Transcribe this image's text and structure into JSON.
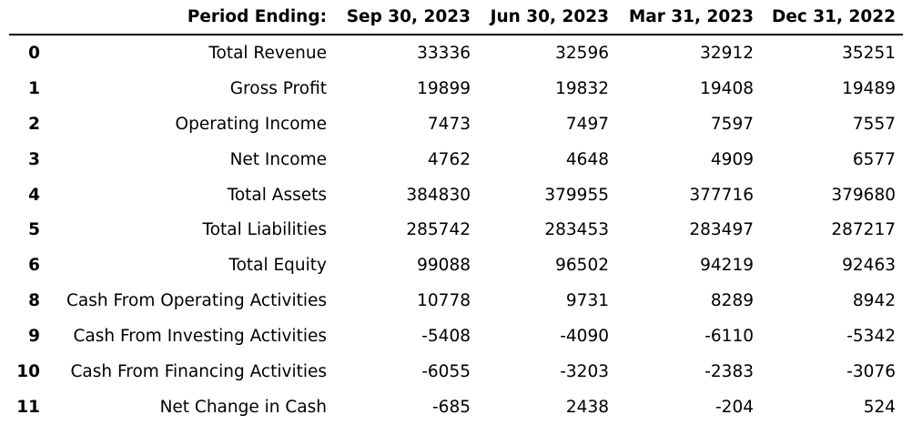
{
  "chart_data": {
    "type": "table",
    "header_label": "Period Ending:",
    "columns": [
      "Sep 30, 2023",
      "Jun 30, 2023",
      "Mar 31, 2023",
      "Dec 31, 2022"
    ],
    "rows": [
      {
        "index": "0",
        "label": "Total Revenue",
        "values": [
          "33336",
          "32596",
          "32912",
          "35251"
        ]
      },
      {
        "index": "1",
        "label": "Gross Profit",
        "values": [
          "19899",
          "19832",
          "19408",
          "19489"
        ]
      },
      {
        "index": "2",
        "label": "Operating Income",
        "values": [
          "7473",
          "7497",
          "7597",
          "7557"
        ]
      },
      {
        "index": "3",
        "label": "Net Income",
        "values": [
          "4762",
          "4648",
          "4909",
          "6577"
        ]
      },
      {
        "index": "4",
        "label": "Total Assets",
        "values": [
          "384830",
          "379955",
          "377716",
          "379680"
        ]
      },
      {
        "index": "5",
        "label": "Total Liabilities",
        "values": [
          "285742",
          "283453",
          "283497",
          "287217"
        ]
      },
      {
        "index": "6",
        "label": "Total Equity",
        "values": [
          "99088",
          "96502",
          "94219",
          "92463"
        ]
      },
      {
        "index": "8",
        "label": "Cash From Operating Activities",
        "values": [
          "10778",
          "9731",
          "8289",
          "8942"
        ]
      },
      {
        "index": "9",
        "label": "Cash From Investing Activities",
        "values": [
          "-5408",
          "-4090",
          "-6110",
          "-5342"
        ]
      },
      {
        "index": "10",
        "label": "Cash From Financing Activities",
        "values": [
          "-6055",
          "-3203",
          "-2383",
          "-3076"
        ]
      },
      {
        "index": "11",
        "label": "Net Change in Cash",
        "values": [
          "-685",
          "2438",
          "-204",
          "524"
        ]
      }
    ]
  }
}
